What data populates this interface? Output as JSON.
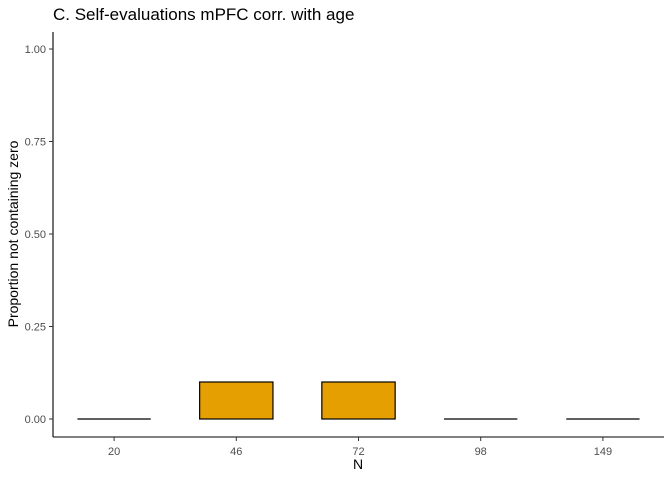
{
  "chart_data": {
    "type": "bar",
    "title": "C. Self-evaluations mPFC corr. with age",
    "xlabel": "N",
    "ylabel": "Proportion not containing zero",
    "categories": [
      "20",
      "46",
      "72",
      "98",
      "149"
    ],
    "values": [
      0.0,
      0.1,
      0.1,
      0.0,
      0.0
    ],
    "ylim": [
      0,
      1
    ],
    "yticks": [
      "0.00",
      "0.25",
      "0.50",
      "0.75",
      "1.00"
    ],
    "grid": false,
    "legend": "none",
    "bar_color": "#E69F00",
    "bar_outline": "#000000"
  }
}
